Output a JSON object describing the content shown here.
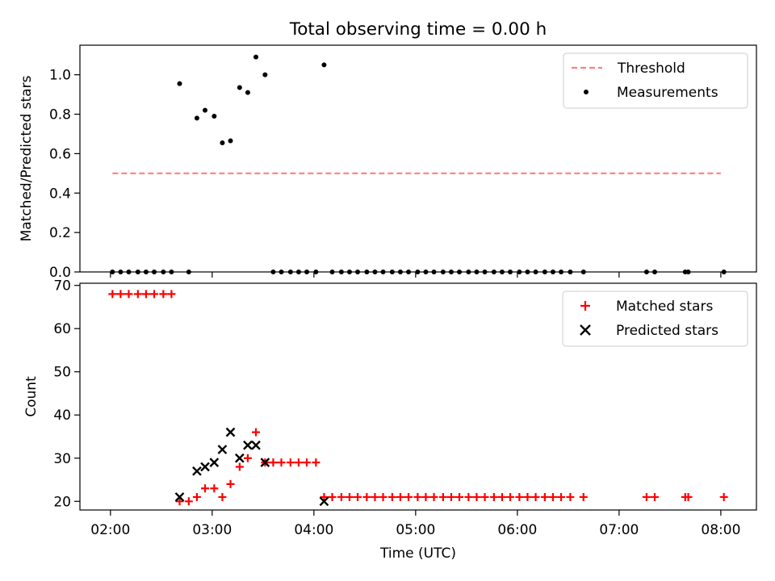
{
  "title": "Total observing time = 0.00 h",
  "chart_data": [
    {
      "type": "scatter",
      "ylabel": "Matched/Predicted stars",
      "xlim": [
        1.7,
        8.35
      ],
      "ylim": [
        0.0,
        1.15
      ],
      "xticks": [
        2,
        3,
        4,
        5,
        6,
        7,
        8
      ],
      "yticks": [
        0.0,
        0.2,
        0.4,
        0.6,
        0.8,
        1.0
      ],
      "ytick_labels": [
        "0.0",
        "0.2",
        "0.4",
        "0.6",
        "0.8",
        "1.0"
      ],
      "legend_position": "top-right",
      "series": [
        {
          "name": "Threshold",
          "kind": "line",
          "style": "dashed",
          "color": "#ff7f7f",
          "x": [
            2.02,
            8.0
          ],
          "y": [
            0.5,
            0.5
          ]
        },
        {
          "name": "Measurements",
          "kind": "scatter",
          "marker": "dot",
          "color": "#000000",
          "x": [
            2.02,
            2.1,
            2.18,
            2.27,
            2.35,
            2.43,
            2.52,
            2.6,
            2.68,
            2.77,
            2.85,
            2.93,
            3.02,
            3.1,
            3.18,
            3.27,
            3.35,
            3.43,
            3.52,
            3.6,
            3.68,
            3.77,
            3.85,
            3.93,
            4.02,
            4.1,
            4.18,
            4.27,
            4.35,
            4.43,
            4.52,
            4.6,
            4.68,
            4.77,
            4.85,
            4.93,
            5.02,
            5.1,
            5.18,
            5.27,
            5.35,
            5.43,
            5.52,
            5.6,
            5.68,
            5.77,
            5.85,
            5.93,
            6.02,
            6.1,
            6.18,
            6.27,
            6.35,
            6.43,
            6.52,
            6.65,
            7.27,
            7.35,
            7.65,
            7.68,
            8.03
          ],
          "y": [
            0,
            0,
            0,
            0,
            0,
            0,
            0,
            0,
            0.955,
            0,
            0.78,
            0.82,
            0.79,
            0.655,
            0.665,
            0.935,
            0.91,
            1.09,
            1.0,
            0,
            0,
            0,
            0,
            0,
            0,
            1.05,
            0,
            0,
            0,
            0,
            0,
            0,
            0,
            0,
            0,
            0,
            0,
            0,
            0,
            0,
            0,
            0,
            0,
            0,
            0,
            0,
            0,
            0,
            0,
            0,
            0,
            0,
            0,
            0,
            0,
            0,
            0,
            0,
            0,
            0,
            0
          ]
        }
      ]
    },
    {
      "type": "scatter",
      "xlabel": "Time (UTC)",
      "ylabel": "Count",
      "xlim": [
        1.7,
        8.35
      ],
      "ylim": [
        18,
        70.5
      ],
      "xticks": [
        2,
        3,
        4,
        5,
        6,
        7,
        8
      ],
      "xtick_labels": [
        "02:00",
        "03:00",
        "04:00",
        "05:00",
        "06:00",
        "07:00",
        "08:00"
      ],
      "yticks": [
        20,
        30,
        40,
        50,
        60,
        70
      ],
      "ytick_labels": [
        "20",
        "30",
        "40",
        "50",
        "60",
        "70"
      ],
      "legend_position": "top-right",
      "series": [
        {
          "name": "Matched stars",
          "kind": "scatter",
          "marker": "plus",
          "color": "#ff0000",
          "x": [
            2.02,
            2.1,
            2.18,
            2.27,
            2.35,
            2.43,
            2.52,
            2.6,
            2.68,
            2.77,
            2.85,
            2.93,
            3.02,
            3.1,
            3.18,
            3.27,
            3.35,
            3.43,
            3.52,
            3.6,
            3.68,
            3.77,
            3.85,
            3.93,
            4.02,
            4.1,
            4.18,
            4.27,
            4.35,
            4.43,
            4.52,
            4.6,
            4.68,
            4.77,
            4.85,
            4.93,
            5.02,
            5.1,
            5.18,
            5.27,
            5.35,
            5.43,
            5.52,
            5.6,
            5.68,
            5.77,
            5.85,
            5.93,
            6.02,
            6.1,
            6.18,
            6.27,
            6.35,
            6.43,
            6.52,
            6.65,
            7.27,
            7.35,
            7.65,
            7.68,
            8.03
          ],
          "y": [
            68,
            68,
            68,
            68,
            68,
            68,
            68,
            68,
            20,
            20,
            21,
            23,
            23,
            21,
            24,
            28,
            30,
            36,
            29,
            29,
            29,
            29,
            29,
            29,
            29,
            21,
            21,
            21,
            21,
            21,
            21,
            21,
            21,
            21,
            21,
            21,
            21,
            21,
            21,
            21,
            21,
            21,
            21,
            21,
            21,
            21,
            21,
            21,
            21,
            21,
            21,
            21,
            21,
            21,
            21,
            21,
            21,
            21,
            21,
            21,
            21
          ]
        },
        {
          "name": "Predicted stars",
          "kind": "scatter",
          "marker": "x",
          "color": "#000000",
          "x": [
            2.68,
            2.85,
            2.93,
            3.02,
            3.1,
            3.18,
            3.27,
            3.35,
            3.43,
            3.52,
            4.1
          ],
          "y": [
            21,
            27,
            28,
            29,
            32,
            36,
            30,
            33,
            33,
            29,
            20
          ]
        }
      ]
    }
  ]
}
